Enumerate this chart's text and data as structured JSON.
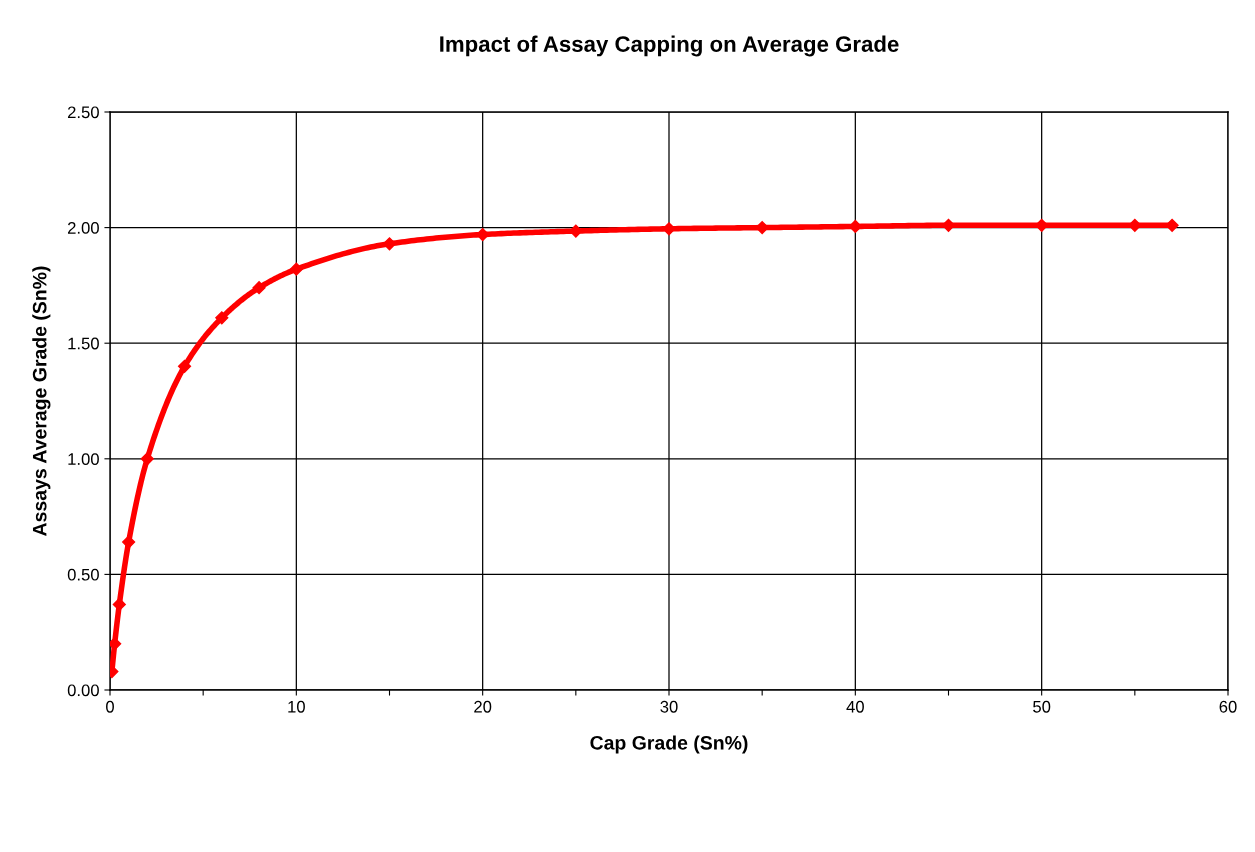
{
  "chart_data": {
    "type": "line",
    "title": "Impact of Assay Capping on Average Grade",
    "xlabel": "Cap Grade (Sn%)",
    "ylabel": "Assays Average Grade (Sn%)",
    "x": [
      0.1,
      0.25,
      0.5,
      1,
      2,
      4,
      6,
      8,
      10,
      15,
      20,
      25,
      30,
      35,
      40,
      45,
      50,
      55,
      57
    ],
    "series": [
      {
        "color": "#ff0000",
        "values": [
          0.08,
          0.2,
          0.37,
          0.64,
          1.0,
          1.4,
          1.61,
          1.74,
          1.82,
          1.93,
          1.97,
          1.985,
          1.995,
          2.0,
          2.005,
          2.01,
          2.01,
          2.01,
          2.01
        ]
      }
    ],
    "xlim": [
      0,
      60
    ],
    "ylim": [
      0,
      2.5
    ],
    "xticks": [
      0,
      {
        "value": 5,
        "label": null
      },
      10,
      {
        "value": 15,
        "label": null
      },
      20,
      {
        "value": 25,
        "label": null
      },
      30,
      {
        "value": 35,
        "label": null
      },
      40,
      {
        "value": 45,
        "label": null
      },
      50,
      {
        "value": 55,
        "label": null
      },
      60
    ],
    "yticks": [
      {
        "value": 0,
        "label": "0.00"
      },
      {
        "value": 0.5,
        "label": "0.50"
      },
      {
        "value": 1,
        "label": "1.00"
      },
      {
        "value": 1.5,
        "label": "1.50"
      },
      {
        "value": 2,
        "label": "2.00"
      },
      {
        "value": 2.5,
        "label": "2.50"
      }
    ],
    "grid": true,
    "marker": "diamond",
    "line_style": "solid"
  }
}
